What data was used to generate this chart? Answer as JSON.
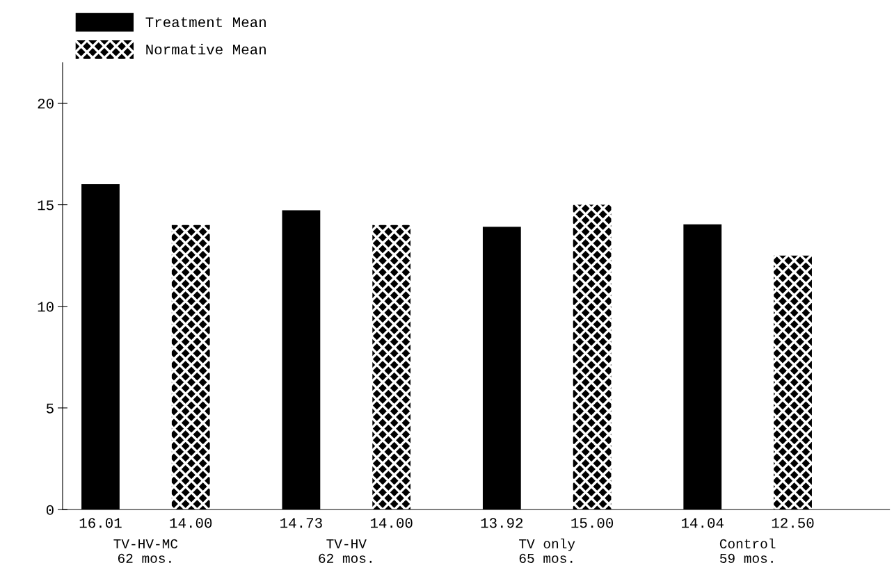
{
  "chart_data": {
    "type": "bar",
    "categories": [
      "TV-HV-MC\n62 mos.",
      "TV-HV\n62 mos.",
      "TV only\n65 mos.",
      "Control\n59 mos."
    ],
    "series": [
      {
        "name": "Treatment Mean",
        "color": "#000000",
        "values": [
          16.01,
          14.73,
          13.92,
          14.04
        ],
        "value_labels": [
          "16.01",
          "14.73",
          "13.92",
          "14.04"
        ]
      },
      {
        "name": "Normative Mean",
        "color": "#000000",
        "values": [
          14.0,
          14.0,
          15.0,
          12.5
        ],
        "value_labels": [
          "14.00",
          "14.00",
          "15.00",
          "12.50"
        ]
      }
    ],
    "ylim": [
      0,
      22
    ],
    "yticks": [
      0,
      5,
      10,
      15,
      20
    ],
    "legend": "top left",
    "grid": false
  }
}
